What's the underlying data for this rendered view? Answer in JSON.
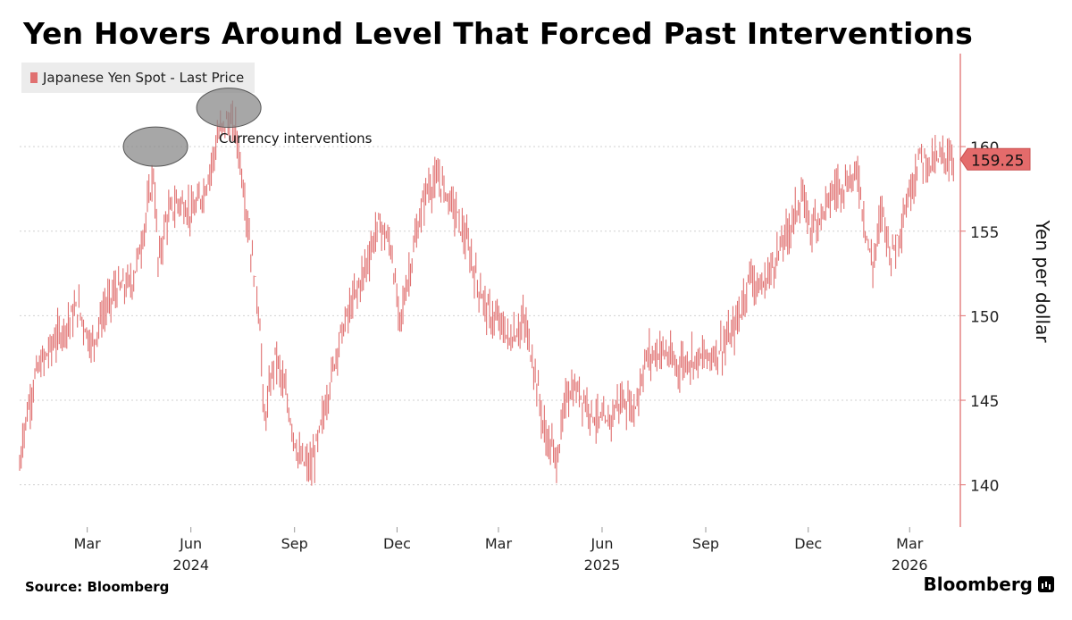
{
  "title": "Yen Hovers Around Level That Forced Past Interventions",
  "source": "Source: Bloomberg",
  "brand": "Bloomberg",
  "colors": {
    "series": "#e07070",
    "last_price_tag": "#e46b6b",
    "grid": "#d0d0d0",
    "axis": "#e07070"
  },
  "chart_data": {
    "type": "line",
    "title": "Yen Hovers Around Level That Forced Past Interventions",
    "ylabel": "Yen per dollar",
    "ylim": [
      137.5,
      165.5
    ],
    "yticks": [
      140,
      145,
      150,
      155,
      160
    ],
    "grid": true,
    "legend": {
      "position": "top-left",
      "entries": [
        "Japanese Yen Spot - Last Price"
      ]
    },
    "last_price": "159.25",
    "xlim": [
      "2024-01-01",
      "2026-04-15"
    ],
    "x_ticks": [
      {
        "label": "Mar",
        "date": "2024-03-01"
      },
      {
        "label": "Jun",
        "date": "2024-06-01"
      },
      {
        "label": "Sep",
        "date": "2024-09-01"
      },
      {
        "label": "Dec",
        "date": "2024-12-01"
      },
      {
        "label": "Mar",
        "date": "2025-03-01"
      },
      {
        "label": "Jun",
        "date": "2025-06-01"
      },
      {
        "label": "Sep",
        "date": "2025-09-01"
      },
      {
        "label": "Dec",
        "date": "2025-12-01"
      },
      {
        "label": "Mar",
        "date": "2026-03-01"
      }
    ],
    "year_labels": [
      {
        "label": "2024",
        "date": "2024-06-01"
      },
      {
        "label": "2025",
        "date": "2025-06-01"
      },
      {
        "label": "2026",
        "date": "2026-03-01"
      }
    ],
    "annotation": {
      "text": "Currency interventions",
      "highlighted_dates": [
        "2024-04-29",
        "2024-07-11"
      ]
    },
    "series": [
      {
        "name": "Japanese Yen Spot - Last Price",
        "x": [
          "2024-01-01",
          "2024-01-04",
          "2024-01-15",
          "2024-02-01",
          "2024-02-12",
          "2024-02-22",
          "2024-03-05",
          "2024-03-14",
          "2024-03-26",
          "2024-04-03",
          "2024-04-10",
          "2024-04-19",
          "2024-04-29",
          "2024-05-03",
          "2024-05-10",
          "2024-05-21",
          "2024-06-03",
          "2024-06-14",
          "2024-06-26",
          "2024-07-03",
          "2024-07-11",
          "2024-07-16",
          "2024-07-25",
          "2024-08-01",
          "2024-08-05",
          "2024-08-15",
          "2024-08-25",
          "2024-09-05",
          "2024-09-16",
          "2024-09-23",
          "2024-10-01",
          "2024-10-10",
          "2024-10-21",
          "2024-11-01",
          "2024-11-15",
          "2024-11-26",
          "2024-12-03",
          "2024-12-16",
          "2024-12-27",
          "2025-01-08",
          "2025-01-20",
          "2025-01-31",
          "2025-02-10",
          "2025-02-21",
          "2025-03-03",
          "2025-03-11",
          "2025-03-24",
          "2025-04-03",
          "2025-04-11",
          "2025-04-22",
          "2025-05-01",
          "2025-05-12",
          "2025-05-26",
          "2025-06-05",
          "2025-06-16",
          "2025-06-30",
          "2025-07-10",
          "2025-07-25",
          "2025-08-05",
          "2025-08-20",
          "2025-09-01",
          "2025-09-10",
          "2025-09-24",
          "2025-10-03",
          "2025-10-10",
          "2025-10-20",
          "2025-11-03",
          "2025-11-13",
          "2025-11-25",
          "2025-12-03",
          "2025-12-12",
          "2025-12-25",
          "2026-01-08",
          "2026-01-14",
          "2026-01-20",
          "2026-01-27",
          "2026-02-05",
          "2026-02-12",
          "2026-02-20",
          "2026-03-02",
          "2026-03-10",
          "2026-03-18",
          "2026-03-26",
          "2026-04-02",
          "2026-04-09"
        ],
        "values": [
          141.0,
          143.0,
          146.5,
          148.5,
          149.5,
          150.5,
          148.2,
          150.0,
          151.5,
          151.7,
          152.0,
          154.6,
          158.5,
          153.0,
          155.7,
          156.8,
          156.0,
          157.6,
          160.8,
          161.5,
          161.0,
          158.5,
          153.5,
          150.0,
          143.5,
          147.8,
          145.0,
          141.5,
          141.0,
          143.0,
          145.5,
          148.5,
          150.5,
          152.5,
          155.5,
          154.0,
          149.5,
          154.0,
          157.5,
          158.0,
          156.5,
          154.5,
          152.0,
          150.0,
          149.5,
          148.5,
          149.7,
          146.5,
          143.0,
          141.5,
          145.5,
          145.5,
          144.0,
          143.5,
          145.0,
          144.5,
          147.5,
          148.0,
          147.0,
          147.5,
          147.5,
          147.8,
          148.8,
          150.5,
          152.5,
          151.5,
          153.5,
          155.0,
          157.0,
          155.3,
          156.0,
          157.5,
          158.0,
          158.5,
          155.5,
          152.8,
          156.5,
          153.5,
          155.0,
          157.5,
          159.5,
          159.0,
          159.2,
          159.5,
          159.25
        ]
      }
    ]
  }
}
